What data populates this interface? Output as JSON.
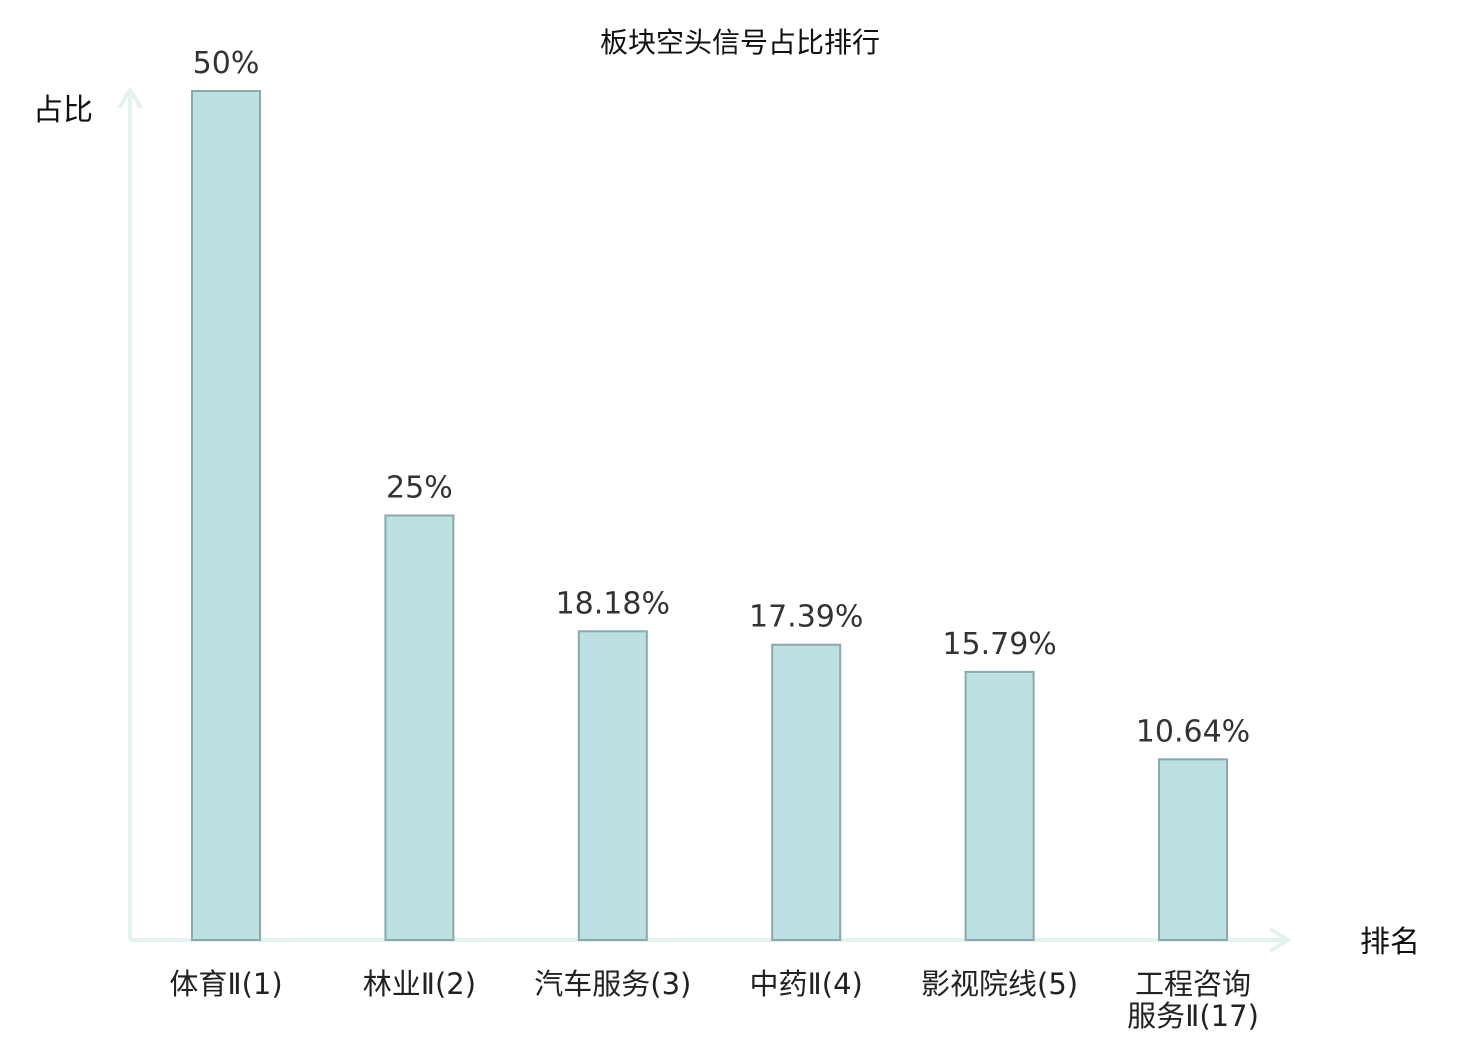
{
  "chart_data": {
    "type": "bar",
    "title": "板块空头信号占比排行",
    "ylabel": "占比",
    "xlabel": "排名",
    "ylim": [
      0,
      50
    ],
    "grid": false,
    "categories": [
      [
        "体育Ⅱ(1)"
      ],
      [
        "林业Ⅱ(2)"
      ],
      [
        "汽车服务(3)"
      ],
      [
        "中药Ⅱ(4)"
      ],
      [
        "影视院线(5)"
      ],
      [
        "工程咨询",
        "服务Ⅱ(17)"
      ]
    ],
    "values": [
      50,
      25,
      18.18,
      17.39,
      15.79,
      10.64
    ],
    "value_labels": [
      "50%",
      "25%",
      "18.18%",
      "17.39%",
      "15.79%",
      "10.64%"
    ],
    "highlight_index": 5,
    "colors": {
      "bar_fill": "#bde0e3",
      "bar_stroke": "#8aa9ad",
      "axis": "#e3f3f1",
      "highlight_text": "#e0141c",
      "text": "#222222"
    }
  }
}
